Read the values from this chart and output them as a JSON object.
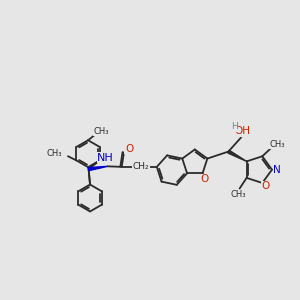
{
  "background_color": "#e6e6e6",
  "bond_color": "#2b2b2b",
  "bond_width": 1.3,
  "figsize": [
    3.0,
    3.0
  ],
  "dpi": 100,
  "xlim": [
    0.0,
    10.5
  ],
  "ylim": [
    0.0,
    10.5
  ],
  "N_color": "#0000cc",
  "O_color": "#cc2200",
  "H_color": "#5a9090",
  "font_size": 7.5
}
